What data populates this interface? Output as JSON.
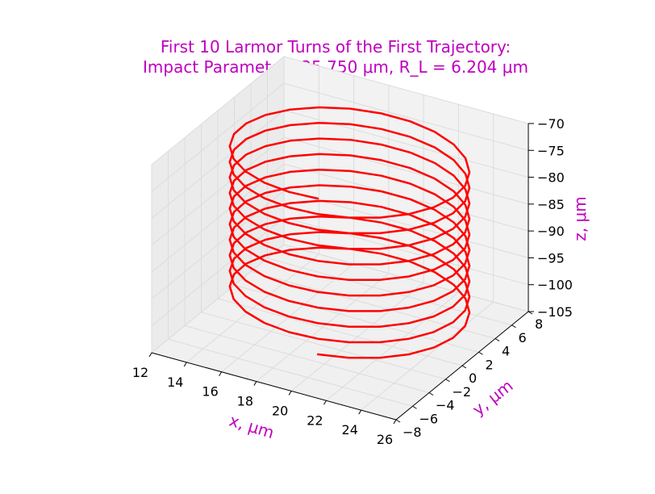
{
  "chart_data": {
    "type": "line",
    "projection": "3d",
    "title": {
      "line1": "First 10 Larmor Turns of the First Trajectory:",
      "line2": "Impact Parameter=25.750 μm, R_L = 6.204 μm"
    },
    "xlabel": "x, μm",
    "ylabel": "y, μm",
    "zlabel": "z, μm",
    "xlim": [
      12,
      26
    ],
    "ylim": [
      -8,
      8
    ],
    "zlim": [
      -105,
      -70
    ],
    "x_ticks": [
      12,
      14,
      16,
      18,
      20,
      22,
      24,
      26
    ],
    "y_ticks": [
      -8,
      -6,
      -4,
      -2,
      0,
      2,
      4,
      6,
      8
    ],
    "z_ticks": [
      -105,
      -100,
      -95,
      -90,
      -85,
      -80,
      -75,
      -70
    ],
    "x_tick_labels": [
      "12",
      "14",
      "16",
      "18",
      "20",
      "22",
      "24",
      "26"
    ],
    "y_tick_labels": [
      "−8",
      "−6",
      "−4",
      "−2",
      "0",
      "2",
      "4",
      "6",
      "8"
    ],
    "z_tick_labels": [
      "−105",
      "−100",
      "−95",
      "−90",
      "−85",
      "−80",
      "−75",
      "−70"
    ],
    "grid": true,
    "series": [
      {
        "color": "#ff0000",
        "helix": {
          "center_x": 19.55,
          "center_y": 0.0,
          "radius": 6.204,
          "turns": 10,
          "points_per_turn": 24,
          "z_start": -100.0,
          "z_end": -71.0,
          "start_angle_deg": -80
        }
      }
    ]
  }
}
